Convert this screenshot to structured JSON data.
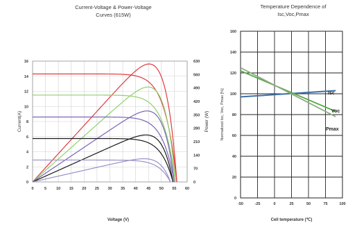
{
  "chart_data": [
    {
      "type": "line",
      "title": "Current-Voltage & Power-Voltage Curves (615W)",
      "xlabel": "Voltage (V)",
      "ylabel": "Current(A)",
      "y2label": "Power (W)",
      "xlim": [
        0,
        60
      ],
      "ylim": [
        0,
        16
      ],
      "y2lim": [
        0,
        630
      ],
      "xticks": [
        "0",
        "5",
        "10",
        "15",
        "20",
        "25",
        "30",
        "35",
        "40",
        "45",
        "50",
        "55",
        "60"
      ],
      "yticks": [
        "0",
        "2",
        "4",
        "6",
        "8",
        "10",
        "12",
        "14",
        "16"
      ],
      "y2ticks": [
        "0",
        "70",
        "140",
        "210",
        "280",
        "350",
        "420",
        "490",
        "560",
        "630"
      ],
      "grid": true,
      "legend": "none",
      "series": [
        {
          "color": "#e0393e",
          "isc": 14.3,
          "voc": 56,
          "vmp": 45,
          "imp": 13.7,
          "pmax": 615
        },
        {
          "color": "#8fd06b",
          "isc": 11.5,
          "voc": 55.5,
          "vmp": 45,
          "imp": 11.0,
          "pmax": 495
        },
        {
          "color": "#7b63b8",
          "isc": 8.6,
          "voc": 55,
          "vmp": 44.5,
          "imp": 8.3,
          "pmax": 370
        },
        {
          "color": "#1a1a1a",
          "isc": 5.75,
          "voc": 54.5,
          "vmp": 44.5,
          "imp": 5.5,
          "pmax": 245
        },
        {
          "color": "#9a8fc8",
          "isc": 2.9,
          "voc": 53.5,
          "vmp": 44,
          "imp": 2.75,
          "pmax": 121
        }
      ]
    },
    {
      "type": "line",
      "title": "Temperature Dependence of Isc,Voc,Pmax",
      "xlabel": "Cell temperature (℃)",
      "ylabel": "Normalized Isc, Voc, Pmax [%]",
      "xlim": [
        -50,
        100
      ],
      "ylim": [
        0,
        160
      ],
      "xticks": [
        "-50",
        "-25",
        "0",
        "25",
        "50",
        "75",
        "100"
      ],
      "yticks": [
        "0",
        "20",
        "40",
        "60",
        "80",
        "100",
        "120",
        "140",
        "160"
      ],
      "grid": true,
      "series": [
        {
          "name": "Isc",
          "color": "#3d6fa8",
          "x": [
            -50,
            90
          ],
          "y": [
            97,
            103
          ]
        },
        {
          "name": "Voc",
          "color": "#5aa84c",
          "x": [
            -50,
            90
          ],
          "y": [
            122,
            83
          ]
        },
        {
          "name": "Pmax",
          "color": "#8aaa80",
          "x": [
            -50,
            90
          ],
          "y": [
            125,
            78
          ]
        }
      ]
    }
  ]
}
